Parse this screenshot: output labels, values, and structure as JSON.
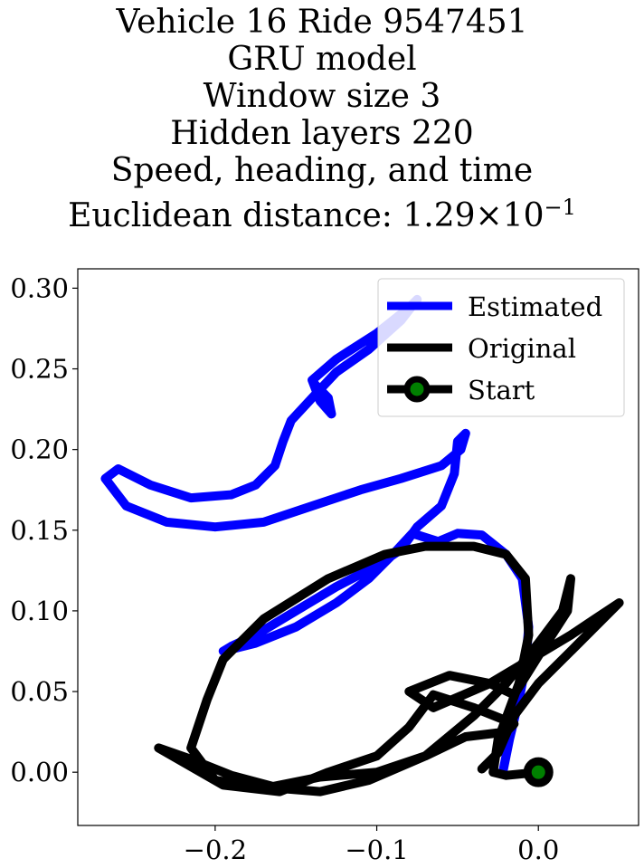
{
  "title_lines": [
    "Vehicle 16 Ride 9547451",
    "GRU model",
    "Window size 3",
    "Hidden layers 220",
    "Speed, heading, and time",
    "Euclidean distance: "
  ],
  "distance_mantissa": "1.29",
  "distance_times": "×",
  "distance_base": "10",
  "distance_exponent": "−1",
  "chart_data": {
    "type": "line",
    "xlim": [
      -0.285,
      0.062
    ],
    "ylim": [
      -0.033,
      0.312
    ],
    "x_ticks": [
      -0.2,
      -0.1,
      0.0
    ],
    "x_tick_labels": [
      "−0.2",
      "−0.1",
      "0.0"
    ],
    "y_ticks": [
      0.0,
      0.05,
      0.1,
      0.15,
      0.2,
      0.25,
      0.3
    ],
    "y_tick_labels": [
      "0.00",
      "0.05",
      "0.10",
      "0.15",
      "0.20",
      "0.25",
      "0.30"
    ],
    "grid": false,
    "legend_position": "top-right",
    "legend": [
      "Estimated",
      "Original",
      "Start"
    ],
    "colors": {
      "estimated": "#0000ff",
      "original": "#000000",
      "start_fill": "#008000",
      "start_edge": "#000000"
    },
    "series": [
      {
        "name": "Estimated",
        "points": [
          [
            -0.022,
            0.0
          ],
          [
            -0.018,
            0.02
          ],
          [
            -0.012,
            0.045
          ],
          [
            -0.008,
            0.065
          ],
          [
            -0.006,
            0.09
          ],
          [
            -0.01,
            0.12
          ],
          [
            -0.02,
            0.135
          ],
          [
            -0.035,
            0.147
          ],
          [
            -0.05,
            0.148
          ],
          [
            -0.062,
            0.143
          ],
          [
            -0.078,
            0.148
          ],
          [
            -0.09,
            0.135
          ],
          [
            -0.105,
            0.12
          ],
          [
            -0.125,
            0.105
          ],
          [
            -0.15,
            0.09
          ],
          [
            -0.175,
            0.08
          ],
          [
            -0.195,
            0.075
          ],
          [
            -0.19,
            0.078
          ],
          [
            -0.175,
            0.085
          ],
          [
            -0.15,
            0.1
          ],
          [
            -0.125,
            0.115
          ],
          [
            -0.1,
            0.128
          ],
          [
            -0.085,
            0.138
          ],
          [
            -0.075,
            0.152
          ],
          [
            -0.06,
            0.165
          ],
          [
            -0.052,
            0.185
          ],
          [
            -0.05,
            0.205
          ],
          [
            -0.045,
            0.21
          ],
          [
            -0.048,
            0.2
          ],
          [
            -0.06,
            0.19
          ],
          [
            -0.085,
            0.182
          ],
          [
            -0.11,
            0.175
          ],
          [
            -0.14,
            0.165
          ],
          [
            -0.17,
            0.155
          ],
          [
            -0.2,
            0.152
          ],
          [
            -0.23,
            0.155
          ],
          [
            -0.255,
            0.165
          ],
          [
            -0.268,
            0.182
          ],
          [
            -0.26,
            0.188
          ],
          [
            -0.24,
            0.178
          ],
          [
            -0.215,
            0.17
          ],
          [
            -0.19,
            0.172
          ],
          [
            -0.175,
            0.178
          ],
          [
            -0.163,
            0.19
          ],
          [
            -0.158,
            0.205
          ],
          [
            -0.153,
            0.218
          ],
          [
            -0.14,
            0.232
          ],
          [
            -0.125,
            0.248
          ],
          [
            -0.105,
            0.262
          ],
          [
            -0.085,
            0.28
          ],
          [
            -0.075,
            0.293
          ],
          [
            -0.08,
            0.288
          ],
          [
            -0.1,
            0.272
          ],
          [
            -0.125,
            0.256
          ],
          [
            -0.14,
            0.243
          ],
          [
            -0.135,
            0.23
          ],
          [
            -0.128,
            0.222
          ],
          [
            -0.13,
            0.232
          ],
          [
            -0.138,
            0.24
          ],
          [
            -0.14,
            0.243
          ]
        ]
      },
      {
        "name": "Original",
        "points": [
          [
            0.0,
            0.0
          ],
          [
            -0.02,
            -0.002
          ],
          [
            -0.028,
            0.0
          ],
          [
            -0.025,
            0.02
          ],
          [
            -0.012,
            0.055
          ],
          [
            -0.006,
            0.085
          ],
          [
            -0.008,
            0.12
          ],
          [
            -0.02,
            0.135
          ],
          [
            -0.04,
            0.14
          ],
          [
            -0.07,
            0.14
          ],
          [
            -0.095,
            0.135
          ],
          [
            -0.13,
            0.12
          ],
          [
            -0.17,
            0.095
          ],
          [
            -0.195,
            0.07
          ],
          [
            -0.205,
            0.045
          ],
          [
            -0.215,
            0.015
          ],
          [
            -0.2,
            -0.005
          ],
          [
            -0.17,
            -0.01
          ],
          [
            -0.135,
            -0.003
          ],
          [
            -0.1,
            0.0
          ],
          [
            -0.07,
            0.01
          ],
          [
            -0.045,
            0.022
          ],
          [
            -0.02,
            0.025
          ],
          [
            -0.015,
            0.03
          ],
          [
            -0.04,
            0.04
          ],
          [
            -0.065,
            0.048
          ],
          [
            -0.08,
            0.028
          ],
          [
            -0.1,
            0.01
          ],
          [
            -0.13,
            0.0
          ],
          [
            -0.16,
            -0.012
          ],
          [
            -0.195,
            -0.008
          ],
          [
            -0.235,
            0.015
          ],
          [
            -0.215,
            0.008
          ],
          [
            -0.19,
            -0.002
          ],
          [
            -0.16,
            -0.01
          ],
          [
            -0.135,
            -0.012
          ],
          [
            -0.105,
            -0.005
          ],
          [
            -0.07,
            0.01
          ],
          [
            -0.04,
            0.035
          ],
          [
            -0.02,
            0.055
          ],
          [
            0.0,
            0.08
          ],
          [
            0.015,
            0.1
          ],
          [
            0.02,
            0.12
          ],
          [
            0.018,
            0.1
          ],
          [
            0.0,
            0.072
          ],
          [
            -0.015,
            0.048
          ],
          [
            -0.03,
            0.055
          ],
          [
            -0.055,
            0.06
          ],
          [
            -0.08,
            0.05
          ],
          [
            -0.065,
            0.04
          ],
          [
            -0.03,
            0.055
          ],
          [
            -0.005,
            0.07
          ],
          [
            0.02,
            0.085
          ],
          [
            0.035,
            0.095
          ],
          [
            0.05,
            0.105
          ],
          [
            0.045,
            0.1
          ],
          [
            0.02,
            0.075
          ],
          [
            0.0,
            0.055
          ],
          [
            -0.015,
            0.035
          ],
          [
            -0.025,
            0.012
          ],
          [
            -0.035,
            0.002
          ]
        ]
      }
    ],
    "start_point": [
      0.0,
      0.0
    ]
  }
}
